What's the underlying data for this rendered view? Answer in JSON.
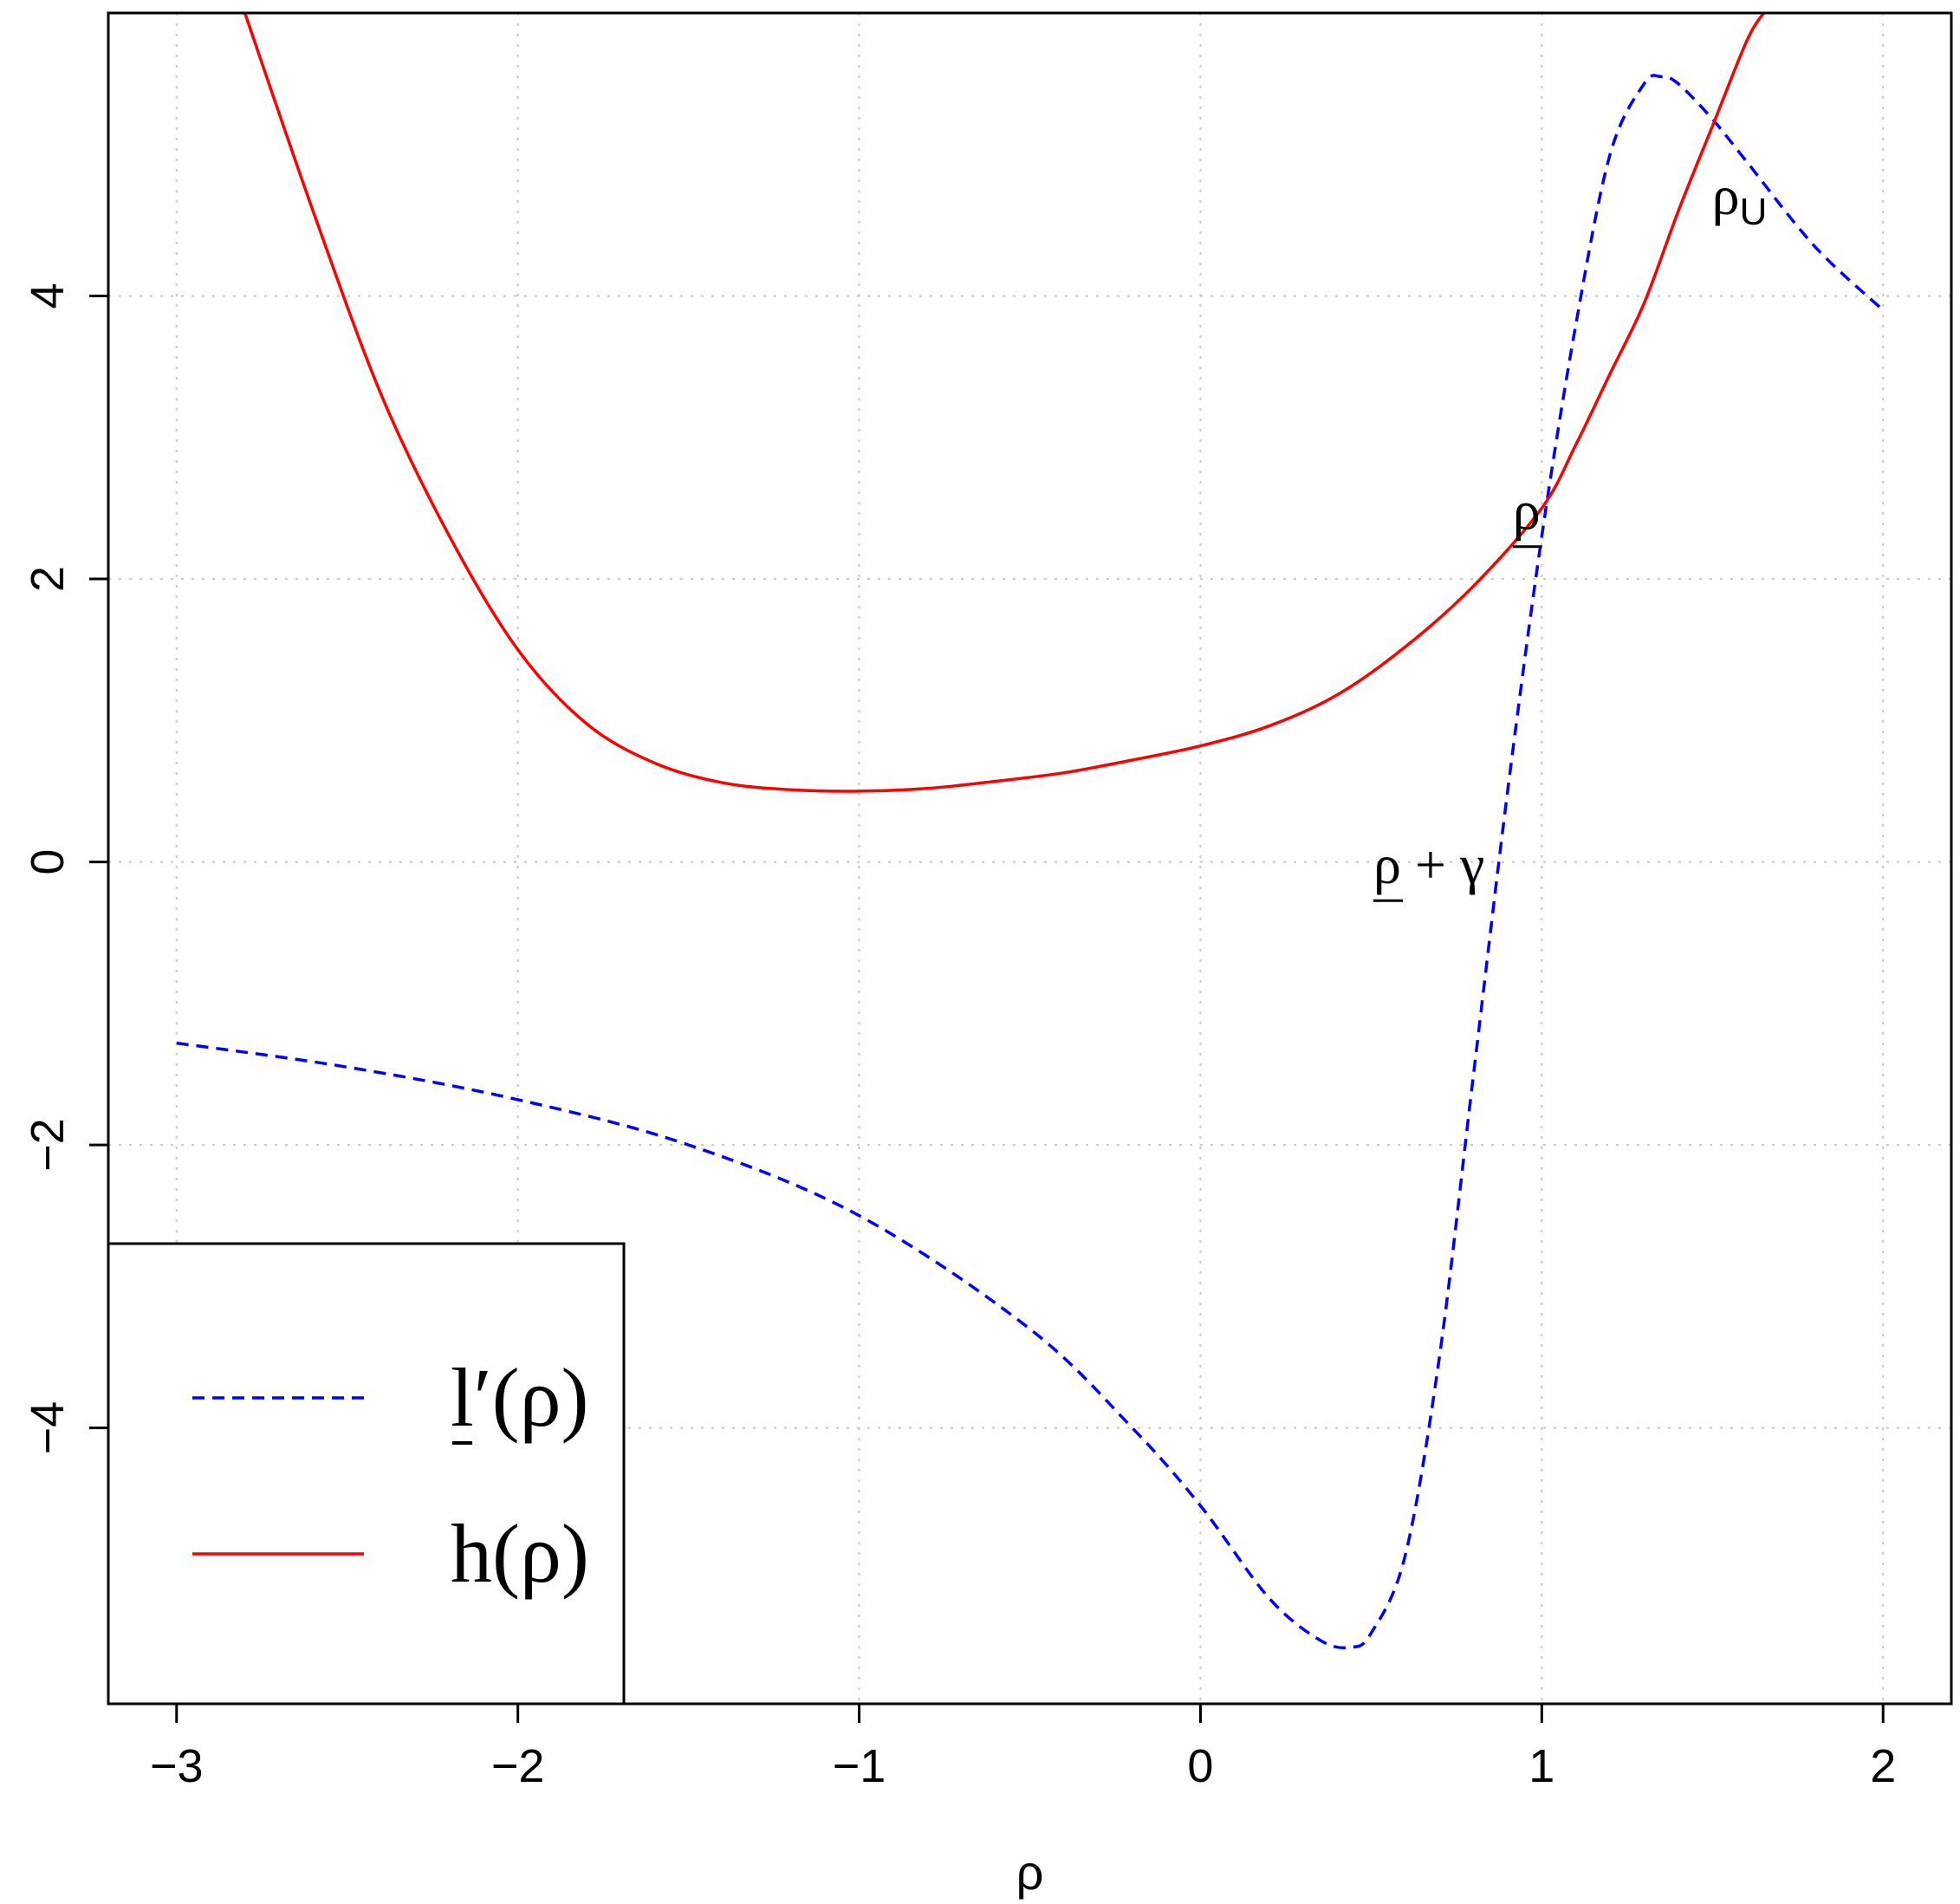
{
  "chart_data": {
    "type": "line",
    "xlabel": "ρ",
    "ylabel": "",
    "xlim": [
      -3.2,
      2.2
    ],
    "ylim": [
      -5.95,
      6.0
    ],
    "x_ticks": [
      -3,
      -2,
      -1,
      0,
      1,
      2
    ],
    "x_tick_labels": [
      "−3",
      "−2",
      "−1",
      "0",
      "1",
      "2"
    ],
    "y_ticks": [
      -4,
      -2,
      0,
      2,
      4
    ],
    "y_tick_labels": [
      "−4",
      "−2",
      "0",
      "2",
      "4"
    ],
    "grid": true,
    "legend_position": "bottom-left",
    "series": [
      {
        "name": "l′(ρ)",
        "color": "#0000ff",
        "line_style": "dashed",
        "x": [
          -3.0,
          -2.5,
          -2.0,
          -1.5,
          -1.0,
          -0.5,
          -0.2,
          0.0,
          0.2,
          0.35,
          0.44,
          0.5,
          0.6,
          0.7,
          0.8,
          0.9,
          1.0,
          1.1,
          1.2,
          1.3,
          1.35,
          1.4,
          1.5,
          1.6,
          1.8,
          2.0
        ],
        "y": [
          -1.28,
          -1.45,
          -1.68,
          -2.0,
          -2.5,
          -3.3,
          -4.0,
          -4.55,
          -5.2,
          -5.5,
          -5.55,
          -5.45,
          -4.9,
          -3.5,
          -1.5,
          0.5,
          2.3,
          3.8,
          5.0,
          5.5,
          5.55,
          5.5,
          5.25,
          4.95,
          4.35,
          3.9
        ]
      },
      {
        "name": "h(ρ)",
        "color": "#ff0000",
        "line_style": "solid",
        "x": [
          -2.8,
          -2.6,
          -2.4,
          -2.2,
          -2.0,
          -1.8,
          -1.6,
          -1.4,
          -1.2,
          -1.0,
          -0.8,
          -0.6,
          -0.4,
          -0.2,
          0.0,
          0.2,
          0.4,
          0.6,
          0.8,
          1.0,
          1.1,
          1.2,
          1.3,
          1.4,
          1.5,
          1.6,
          1.65
        ],
        "y": [
          6.0,
          4.6,
          3.3,
          2.3,
          1.5,
          0.98,
          0.7,
          0.56,
          0.51,
          0.5,
          0.52,
          0.57,
          0.63,
          0.72,
          0.82,
          0.96,
          1.18,
          1.52,
          1.95,
          2.5,
          2.95,
          3.45,
          3.95,
          4.6,
          5.2,
          5.8,
          6.0
        ]
      }
    ],
    "annotations": [
      {
        "text": "ρ",
        "subscript": "U",
        "x": 1.6,
        "y": 4.7
      },
      {
        "text": "ρ",
        "underline": true,
        "x": 1.1,
        "y": 2.4
      },
      {
        "text": "ρ + γ",
        "underline_first": true,
        "x": 0.9,
        "y": -0.2
      }
    ],
    "legend": {
      "entries": [
        {
          "label": "l′(ρ)",
          "color": "#0000ff",
          "line_style": "dashed"
        },
        {
          "label": "h(ρ)",
          "color": "#ff0000",
          "line_style": "solid"
        }
      ]
    }
  }
}
